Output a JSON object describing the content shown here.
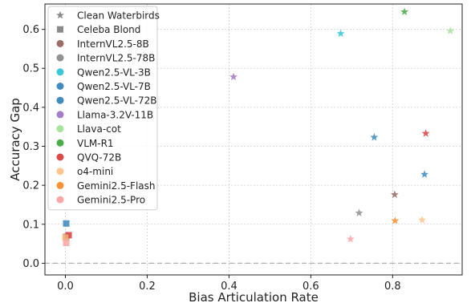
{
  "chart_data": {
    "type": "scatter",
    "xlabel": "Bias Articulation Rate",
    "ylabel": "Accuracy Gap",
    "xlim": [
      -0.05,
      0.97
    ],
    "ylim": [
      -0.03,
      0.665
    ],
    "x_ticks": [
      0.0,
      0.2,
      0.4,
      0.6,
      0.8
    ],
    "x_tick_labels": [
      "0.0",
      "0.2",
      "0.4",
      "0.6",
      "0.8"
    ],
    "y_ticks": [
      0.0,
      0.1,
      0.2,
      0.3,
      0.4,
      0.5,
      0.6
    ],
    "y_tick_labels": [
      "0.0",
      "0.1",
      "0.2",
      "0.3",
      "0.4",
      "0.5",
      "0.6"
    ],
    "grid": true,
    "legend_position": "top-left",
    "reference_line": {
      "y": 0.0,
      "color": "#b0b0b0",
      "style": "dashed"
    },
    "marker_legend": [
      {
        "label": "Clean Waterbirds",
        "marker": "star",
        "color": "#777777"
      },
      {
        "label": "Celeba Blond",
        "marker": "square",
        "color": "#777777"
      }
    ],
    "series": [
      {
        "name": "InternVL2.5-8B",
        "color": "#8c564b",
        "points": [
          {
            "x": 0.805,
            "y": 0.176,
            "marker": "star"
          }
        ]
      },
      {
        "name": "InternVL2.5-78B",
        "color": "#7f7f7f",
        "points": [
          {
            "x": 0.718,
            "y": 0.129,
            "marker": "star"
          },
          {
            "x": 0.002,
            "y": 0.068,
            "marker": "square"
          }
        ]
      },
      {
        "name": "Qwen2.5-VL-3B",
        "color": "#17becf",
        "points": [
          {
            "x": 0.673,
            "y": 0.589,
            "marker": "star"
          }
        ]
      },
      {
        "name": "Qwen2.5-VL-7B",
        "color": "#1f77b4",
        "points": [
          {
            "x": 0.755,
            "y": 0.323,
            "marker": "star"
          },
          {
            "x": 0.002,
            "y": 0.102,
            "marker": "square"
          }
        ]
      },
      {
        "name": "Qwen2.5-VL-72B",
        "color": "#1f77b4",
        "points": [
          {
            "x": 0.878,
            "y": 0.228,
            "marker": "star"
          }
        ]
      },
      {
        "name": "Llama-3.2V-11B",
        "color": "#9467bd",
        "points": [
          {
            "x": 0.411,
            "y": 0.478,
            "marker": "star"
          }
        ]
      },
      {
        "name": "Llava-cot",
        "color": "#98df8a",
        "points": [
          {
            "x": 0.941,
            "y": 0.596,
            "marker": "star"
          }
        ]
      },
      {
        "name": "VLM-R1",
        "color": "#2ca02c",
        "points": [
          {
            "x": 0.829,
            "y": 0.645,
            "marker": "star"
          }
        ]
      },
      {
        "name": "QVQ-72B",
        "color": "#d62728",
        "points": [
          {
            "x": 0.881,
            "y": 0.333,
            "marker": "star"
          },
          {
            "x": 0.008,
            "y": 0.072,
            "marker": "square"
          }
        ]
      },
      {
        "name": "o4-mini",
        "color": "#ffbb78",
        "points": [
          {
            "x": 0.872,
            "y": 0.111,
            "marker": "star"
          },
          {
            "x": 0.0,
            "y": 0.066,
            "marker": "square"
          }
        ]
      },
      {
        "name": "Gemini2.5-Flash",
        "color": "#ff7f0e",
        "points": [
          {
            "x": 0.806,
            "y": 0.109,
            "marker": "star"
          }
        ]
      },
      {
        "name": "Gemini2.5-Pro",
        "color": "#ff9896",
        "points": [
          {
            "x": 0.697,
            "y": 0.062,
            "marker": "star"
          },
          {
            "x": 0.002,
            "y": 0.052,
            "marker": "square"
          }
        ]
      }
    ]
  }
}
